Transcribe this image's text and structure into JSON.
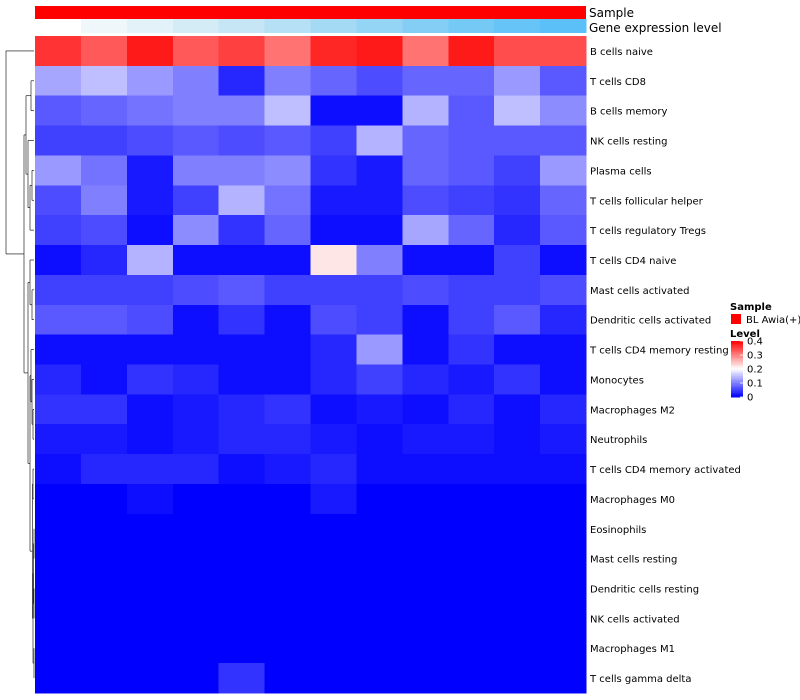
{
  "chart_data": {
    "type": "heatmap",
    "title": "",
    "annotation_rows": [
      "Sample",
      "Gene expression level"
    ],
    "sample_annotation_color": "#ff0000",
    "gene_expression_level_colors": [
      "#ffffff",
      "#f0f7fb",
      "#e3f1f8",
      "#d4ecf6",
      "#c6e6f5",
      "#b6e0f5",
      "#a5daf5",
      "#94d4f5",
      "#84cef5",
      "#75c9f5",
      "#67c4f6",
      "#5bc0f7"
    ],
    "rows": [
      "B cells naive",
      "T cells CD8",
      "B cells memory",
      "NK cells resting",
      "Plasma cells",
      "T cells follicular helper",
      "T cells regulatory  Tregs",
      "T cells CD4 naive",
      "Mast cells activated",
      "Dendritic cells activated",
      "T cells CD4 memory resting",
      "Monocytes",
      "Macrophages M2",
      "Neutrophils",
      "T cells CD4 memory activated",
      "Macrophages M0",
      "Eosinophils",
      "Mast cells resting",
      "Dendritic cells resting",
      "NK cells activated",
      "Macrophages M1",
      "T cells gamma delta"
    ],
    "num_columns": 12,
    "values": [
      [
        0.36,
        0.33,
        0.38,
        0.33,
        0.35,
        0.31,
        0.37,
        0.38,
        0.31,
        0.38,
        0.34,
        0.34
      ],
      [
        0.13,
        0.15,
        0.12,
        0.1,
        0.03,
        0.1,
        0.08,
        0.06,
        0.08,
        0.08,
        0.12,
        0.07
      ],
      [
        0.07,
        0.08,
        0.09,
        0.1,
        0.1,
        0.15,
        0.01,
        0.01,
        0.14,
        0.07,
        0.15,
        0.11
      ],
      [
        0.05,
        0.05,
        0.06,
        0.07,
        0.06,
        0.07,
        0.05,
        0.14,
        0.08,
        0.07,
        0.07,
        0.07
      ],
      [
        0.12,
        0.09,
        0.02,
        0.1,
        0.1,
        0.11,
        0.04,
        0.02,
        0.08,
        0.07,
        0.05,
        0.12
      ],
      [
        0.06,
        0.1,
        0.02,
        0.05,
        0.14,
        0.09,
        0.02,
        0.02,
        0.06,
        0.05,
        0.04,
        0.08
      ],
      [
        0.05,
        0.06,
        0.01,
        0.11,
        0.04,
        0.08,
        0.01,
        0.01,
        0.13,
        0.08,
        0.03,
        0.07
      ],
      [
        0.01,
        0.03,
        0.14,
        0.01,
        0.01,
        0.01,
        0.22,
        0.1,
        0.01,
        0.01,
        0.05,
        0.01
      ],
      [
        0.05,
        0.05,
        0.05,
        0.06,
        0.07,
        0.05,
        0.05,
        0.05,
        0.06,
        0.05,
        0.05,
        0.06
      ],
      [
        0.07,
        0.07,
        0.06,
        0.01,
        0.04,
        0.01,
        0.06,
        0.05,
        0.01,
        0.05,
        0.07,
        0.03
      ],
      [
        0.01,
        0.01,
        0.01,
        0.01,
        0.01,
        0.01,
        0.03,
        0.12,
        0.01,
        0.04,
        0.01,
        0.01
      ],
      [
        0.03,
        0.01,
        0.04,
        0.03,
        0.01,
        0.01,
        0.03,
        0.05,
        0.03,
        0.02,
        0.04,
        0.01
      ],
      [
        0.04,
        0.04,
        0.01,
        0.02,
        0.03,
        0.04,
        0.01,
        0.02,
        0.01,
        0.03,
        0.01,
        0.03
      ],
      [
        0.02,
        0.02,
        0.01,
        0.02,
        0.03,
        0.03,
        0.02,
        0.01,
        0.02,
        0.02,
        0.01,
        0.02
      ],
      [
        0.01,
        0.03,
        0.03,
        0.03,
        0.01,
        0.02,
        0.03,
        0.01,
        0.01,
        0.01,
        0.01,
        0.01
      ],
      [
        0.0,
        0.0,
        0.01,
        0.0,
        0.0,
        0.0,
        0.02,
        0.0,
        0.0,
        0.0,
        0.0,
        0.0
      ],
      [
        0.0,
        0.0,
        0.0,
        0.0,
        0.0,
        0.0,
        0.0,
        0.0,
        0.0,
        0.0,
        0.0,
        0.0
      ],
      [
        0.0,
        0.0,
        0.0,
        0.0,
        0.0,
        0.0,
        0.0,
        0.0,
        0.0,
        0.0,
        0.0,
        0.0
      ],
      [
        0.0,
        0.0,
        0.0,
        0.0,
        0.0,
        0.0,
        0.0,
        0.0,
        0.0,
        0.0,
        0.0,
        0.0
      ],
      [
        0.0,
        0.0,
        0.0,
        0.0,
        0.0,
        0.0,
        0.0,
        0.0,
        0.0,
        0.0,
        0.0,
        0.0
      ],
      [
        0.0,
        0.0,
        0.0,
        0.0,
        0.0,
        0.0,
        0.0,
        0.0,
        0.0,
        0.0,
        0.0,
        0.0
      ],
      [
        0.0,
        0.0,
        0.0,
        0.0,
        0.04,
        0.0,
        0.0,
        0.0,
        0.0,
        0.0,
        0.0,
        0.0
      ]
    ],
    "color_scale": {
      "low": "#0000ff",
      "mid": "#ffffff",
      "high": "#ff0000",
      "mid_value": 0.2,
      "range": [
        0,
        0.4
      ]
    },
    "legend": {
      "sample_title": "Sample",
      "sample_entry": "BL Awia(+)",
      "level_title": "Level",
      "ticks": [
        "0.4",
        "0.3",
        "0.2",
        "0.1",
        "0"
      ],
      "tick_values": [
        0.4,
        0.3,
        0.2,
        0.1,
        0
      ],
      "placement": "right"
    }
  }
}
